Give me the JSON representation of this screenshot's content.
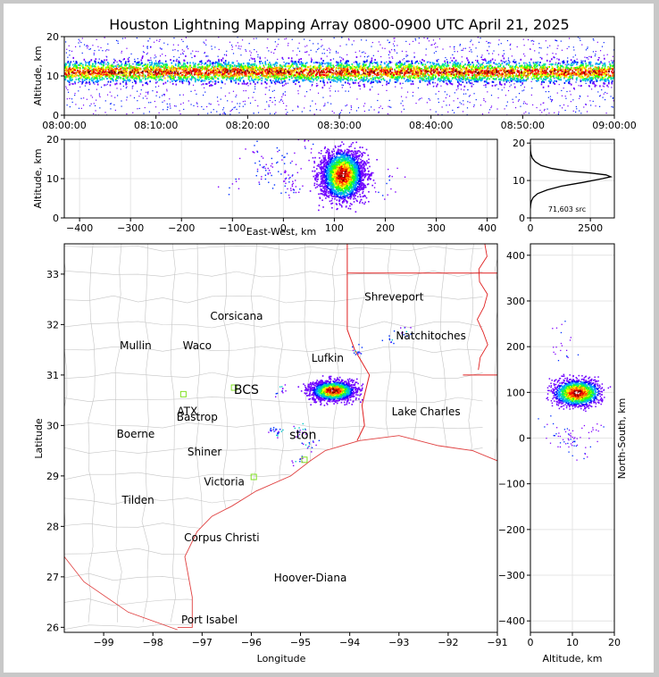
{
  "chart_data": [
    {
      "id": "time-height",
      "type": "heatmap",
      "title": "Houston Lightning Mapping Array 0800-0900 UTC April 21, 2025",
      "xlabel": "",
      "ylabel": "Altitude, km",
      "x_tick_labels": [
        "08:00:00",
        "08:10:00",
        "08:20:00",
        "08:30:00",
        "08:40:00",
        "08:50:00",
        "09:00:00"
      ],
      "xlim": [
        0,
        60
      ],
      "ylim": [
        0,
        20
      ],
      "y_ticks": [
        0,
        10,
        20
      ],
      "source_altitude_band_km": [
        8,
        14
      ],
      "peak_altitude_km": 11
    },
    {
      "id": "ew-height",
      "type": "heatmap",
      "xlabel": "East-West, km",
      "ylabel": "Altitude, km",
      "xlim": [
        -430,
        420
      ],
      "ylim": [
        0,
        20
      ],
      "x_ticks": [
        -400,
        -300,
        -200,
        -100,
        0,
        100,
        200,
        300,
        400
      ],
      "y_ticks": [
        0,
        10,
        20
      ],
      "grid": true,
      "main_cell_center_km": [
        115,
        11
      ]
    },
    {
      "id": "altitude-histogram",
      "type": "line",
      "xlabel": "",
      "ylabel": "",
      "annotation": "71,603 src",
      "xlim": [
        0,
        3500
      ],
      "ylim": [
        0,
        21
      ],
      "x_ticks": [
        0,
        2500
      ],
      "y_ticks": [
        0,
        10,
        20
      ],
      "grid": true,
      "series": [
        {
          "x": [
            0,
            10,
            40,
            120,
            300,
            700,
            1300,
            2200,
            3000,
            3350,
            3150,
            2500,
            1600,
            900,
            450,
            200,
            80,
            25,
            5,
            0
          ],
          "y": [
            2.5,
            3.5,
            4.5,
            5.5,
            6.5,
            7.5,
            8.5,
            9.5,
            10.5,
            11.0,
            11.5,
            12.0,
            12.5,
            13.2,
            14.0,
            15.0,
            16.0,
            17.0,
            18.0,
            19.5
          ]
        }
      ]
    },
    {
      "id": "plan-view",
      "type": "scatter",
      "xlabel": "Longitude",
      "ylabel": "Latitude",
      "xlim": [
        -99.8,
        -91
      ],
      "ylim": [
        25.9,
        33.6
      ],
      "x_ticks": [
        -99,
        -98,
        -97,
        -96,
        -95,
        -94,
        -93,
        -92,
        -91
      ],
      "y_ticks": [
        26,
        27,
        28,
        29,
        30,
        31,
        32,
        33
      ],
      "cities": [
        {
          "name": "Shreveport",
          "lon": -93.1,
          "lat": 32.55,
          "color": "#000000"
        },
        {
          "name": "Corsicana",
          "lon": -96.3,
          "lat": 32.17,
          "color": "#000000"
        },
        {
          "name": "Natchitoches",
          "lon": -92.35,
          "lat": 31.78,
          "color": "#000000"
        },
        {
          "name": "Mullin",
          "lon": -98.35,
          "lat": 31.58,
          "color": "#f08040"
        },
        {
          "name": "Waco",
          "lon": -97.1,
          "lat": 31.58,
          "color": "#000000"
        },
        {
          "name": "Lufkin",
          "lon": -94.45,
          "lat": 31.33,
          "color": "#000000"
        },
        {
          "name": "BCS",
          "lon": -96.1,
          "lat": 30.7,
          "color": "#000000"
        },
        {
          "name": "ATX",
          "lon": -97.3,
          "lat": 30.28,
          "color": "#f08040"
        },
        {
          "name": "Bastrop",
          "lon": -97.1,
          "lat": 30.17,
          "color": "#000000"
        },
        {
          "name": "Lake Charles",
          "lon": -92.45,
          "lat": 30.27,
          "color": "#000000"
        },
        {
          "name": "Boerne",
          "lon": -98.35,
          "lat": 29.83,
          "color": "#000000"
        },
        {
          "name": "ston",
          "lon": -94.95,
          "lat": 29.8,
          "color": "#e8a000"
        },
        {
          "name": "Shiner",
          "lon": -96.95,
          "lat": 29.48,
          "color": "#000000"
        },
        {
          "name": "Victoria",
          "lon": -96.55,
          "lat": 28.88,
          "color": "#000000"
        },
        {
          "name": "Tilden",
          "lon": -98.3,
          "lat": 28.52,
          "color": "#000000"
        },
        {
          "name": "Corpus Christi",
          "lon": -96.6,
          "lat": 27.78,
          "color": "#000000"
        },
        {
          "name": "Hoover-Diana",
          "lon": -94.8,
          "lat": 26.98,
          "color": "#0000ee"
        },
        {
          "name": "Port Isabel",
          "lon": -96.85,
          "lat": 26.15,
          "color": "#000000"
        }
      ],
      "stations": [
        {
          "lon": -97.38,
          "lat": 30.62
        },
        {
          "lon": -96.35,
          "lat": 30.75
        },
        {
          "lon": -95.95,
          "lat": 28.98
        },
        {
          "lon": -94.92,
          "lat": 29.32
        }
      ],
      "main_cell_center": {
        "lon": -94.35,
        "lat": 30.7
      }
    },
    {
      "id": "ns-height",
      "type": "heatmap",
      "xlabel": "Altitude, km",
      "ylabel": "North-South, km",
      "xlim": [
        0,
        20
      ],
      "ylim": [
        -425,
        425
      ],
      "x_ticks": [
        0,
        10,
        20
      ],
      "y_ticks": [
        -400,
        -300,
        -200,
        -100,
        0,
        100,
        200,
        300,
        400
      ],
      "grid": true,
      "main_cell_center_km": [
        11,
        100
      ]
    }
  ]
}
